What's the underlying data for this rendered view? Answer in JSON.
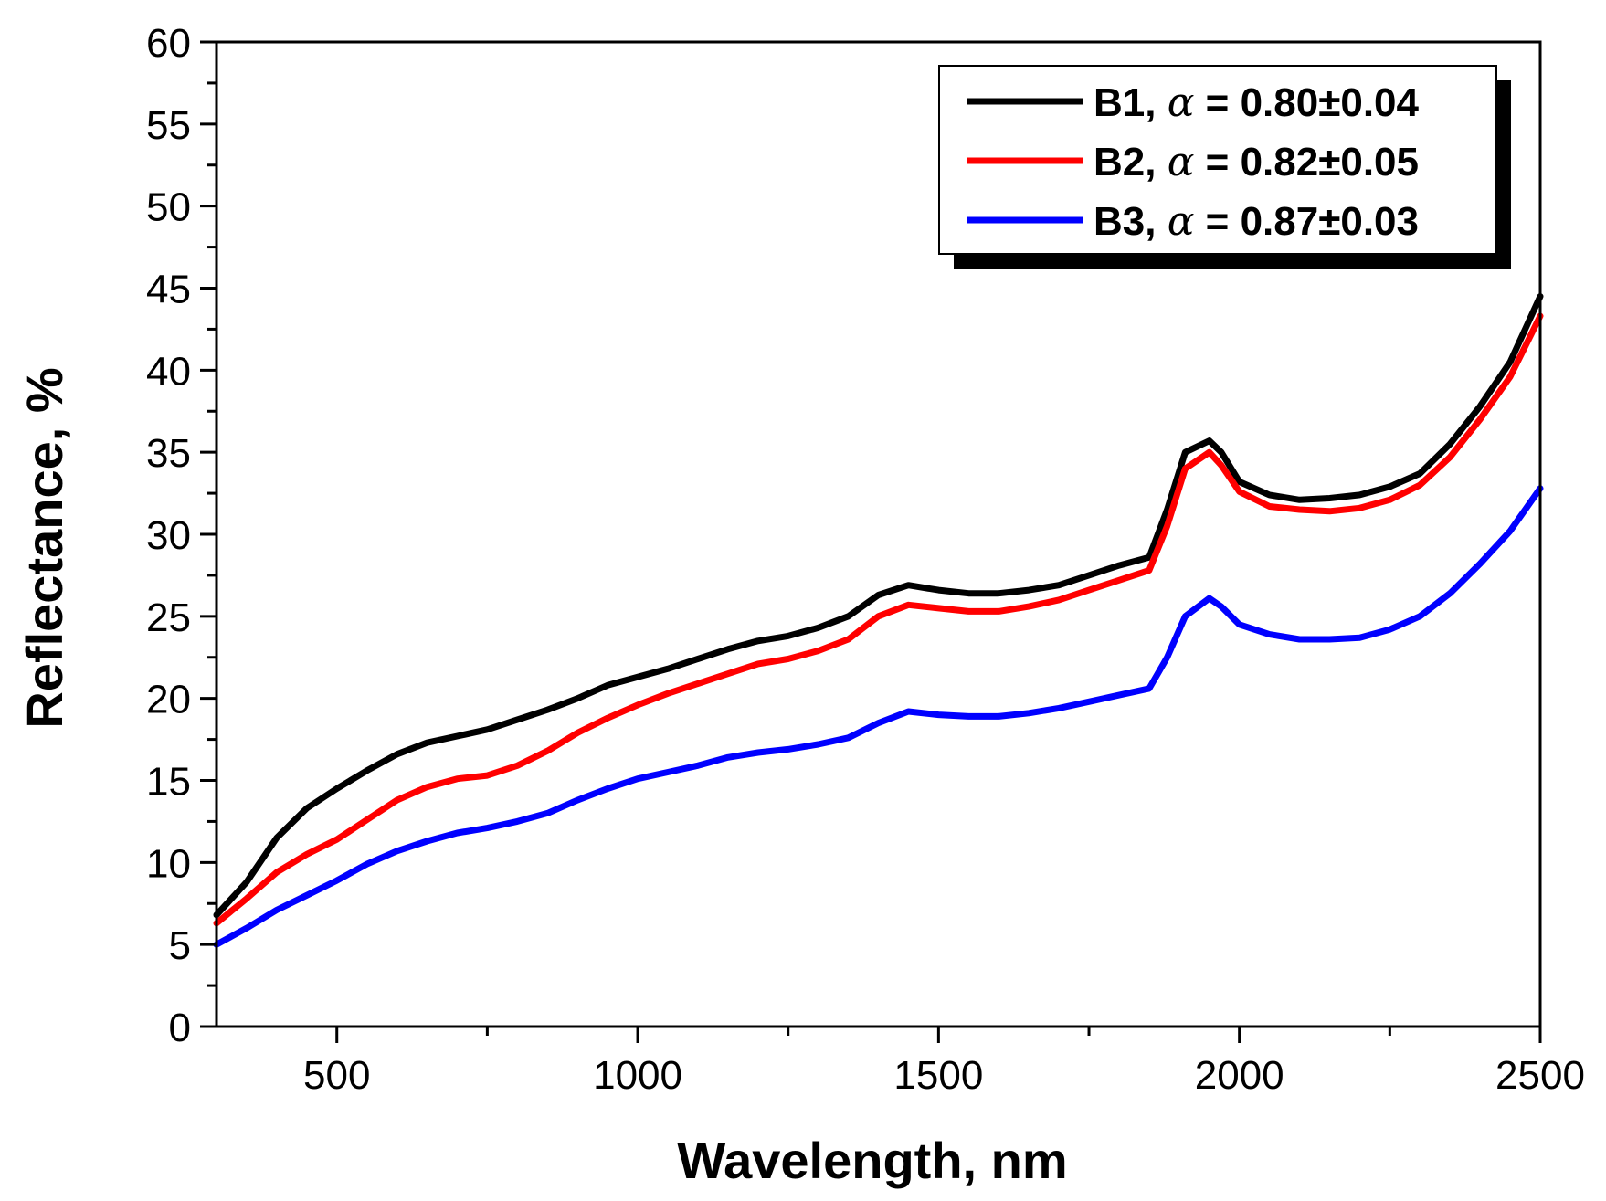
{
  "chart_data": {
    "type": "line",
    "title": "",
    "xlabel": "Wavelength, nm",
    "ylabel": "Reflectance, %",
    "xlim": [
      300,
      2500
    ],
    "ylim": [
      0,
      60
    ],
    "x_major_ticks": [
      500,
      1000,
      1500,
      2000,
      2500
    ],
    "x_minor_ticks": [
      750,
      1250,
      1750,
      2250
    ],
    "y_major_ticks": [
      0,
      5,
      10,
      15,
      20,
      25,
      30,
      35,
      40,
      45,
      50,
      55,
      60
    ],
    "grid": false,
    "legend_position": "top-right",
    "series": [
      {
        "name": "B1",
        "legend_prefix": "B1,",
        "legend_symbol": "α",
        "legend_value": "= 0.80±0.04",
        "color": "#000000",
        "x": [
          300,
          350,
          400,
          450,
          500,
          550,
          600,
          650,
          700,
          750,
          800,
          850,
          900,
          950,
          1000,
          1050,
          1100,
          1150,
          1200,
          1250,
          1300,
          1350,
          1400,
          1450,
          1500,
          1550,
          1600,
          1650,
          1700,
          1750,
          1800,
          1850,
          1880,
          1910,
          1950,
          1970,
          2000,
          2050,
          2100,
          2150,
          2200,
          2250,
          2300,
          2350,
          2400,
          2450,
          2500
        ],
        "y": [
          6.8,
          8.8,
          11.5,
          13.3,
          14.5,
          15.6,
          16.6,
          17.3,
          17.7,
          18.1,
          18.7,
          19.3,
          20.0,
          20.8,
          21.3,
          21.8,
          22.4,
          23.0,
          23.5,
          23.8,
          24.3,
          25.0,
          26.3,
          26.9,
          26.6,
          26.4,
          26.4,
          26.6,
          26.9,
          27.5,
          28.1,
          28.6,
          31.5,
          35.0,
          35.7,
          35.0,
          33.2,
          32.4,
          32.1,
          32.2,
          32.4,
          32.9,
          33.7,
          35.5,
          37.8,
          40.5,
          44.5
        ]
      },
      {
        "name": "B2",
        "legend_prefix": "B2,",
        "legend_symbol": "α",
        "legend_value": "= 0.82±0.05",
        "color": "#ff0000",
        "x": [
          300,
          350,
          400,
          450,
          500,
          550,
          600,
          650,
          700,
          750,
          800,
          850,
          900,
          950,
          1000,
          1050,
          1100,
          1150,
          1200,
          1250,
          1300,
          1350,
          1400,
          1450,
          1500,
          1550,
          1600,
          1650,
          1700,
          1750,
          1800,
          1850,
          1880,
          1910,
          1950,
          1970,
          2000,
          2050,
          2100,
          2150,
          2200,
          2250,
          2300,
          2350,
          2400,
          2450,
          2500
        ],
        "y": [
          6.3,
          7.8,
          9.4,
          10.5,
          11.4,
          12.6,
          13.8,
          14.6,
          15.1,
          15.3,
          15.9,
          16.8,
          17.9,
          18.8,
          19.6,
          20.3,
          20.9,
          21.5,
          22.1,
          22.4,
          22.9,
          23.6,
          25.0,
          25.7,
          25.5,
          25.3,
          25.3,
          25.6,
          26.0,
          26.6,
          27.2,
          27.8,
          30.5,
          34.0,
          35.0,
          34.2,
          32.6,
          31.7,
          31.5,
          31.4,
          31.6,
          32.1,
          33.0,
          34.7,
          37.0,
          39.6,
          43.3
        ]
      },
      {
        "name": "B3",
        "legend_prefix": "B3,",
        "legend_symbol": "α",
        "legend_value": "= 0.87±0.03",
        "color": "#0000ff",
        "x": [
          300,
          350,
          400,
          450,
          500,
          550,
          600,
          650,
          700,
          750,
          800,
          850,
          900,
          950,
          1000,
          1050,
          1100,
          1150,
          1200,
          1250,
          1300,
          1350,
          1400,
          1450,
          1500,
          1550,
          1600,
          1650,
          1700,
          1750,
          1800,
          1850,
          1880,
          1910,
          1950,
          1970,
          2000,
          2050,
          2100,
          2150,
          2200,
          2250,
          2300,
          2350,
          2400,
          2450,
          2500
        ],
        "y": [
          5.0,
          6.0,
          7.1,
          8.0,
          8.9,
          9.9,
          10.7,
          11.3,
          11.8,
          12.1,
          12.5,
          13.0,
          13.8,
          14.5,
          15.1,
          15.5,
          15.9,
          16.4,
          16.7,
          16.9,
          17.2,
          17.6,
          18.5,
          19.2,
          19.0,
          18.9,
          18.9,
          19.1,
          19.4,
          19.8,
          20.2,
          20.6,
          22.5,
          25.0,
          26.1,
          25.6,
          24.5,
          23.9,
          23.6,
          23.6,
          23.7,
          24.2,
          25.0,
          26.4,
          28.2,
          30.2,
          32.8
        ]
      }
    ]
  }
}
